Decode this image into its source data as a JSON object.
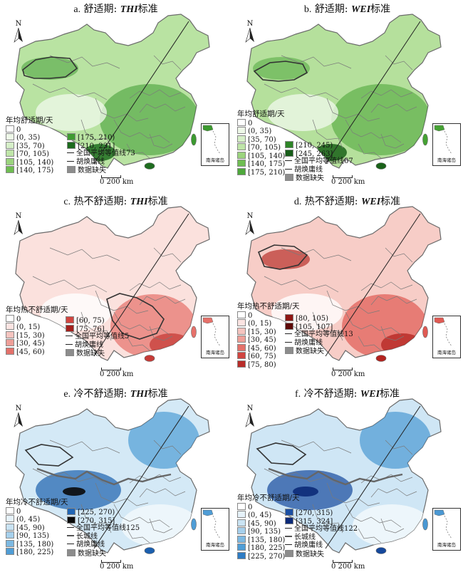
{
  "panels": [
    {
      "idx": "a.",
      "title_prefix": "舒适期:",
      "std": "THI",
      "title_suffix": "标准",
      "legend_title": "年均舒适期/天",
      "legend_col1": [
        "0",
        "(0, 35)",
        "[35, 70)",
        "[70, 105)",
        "[105, 140)",
        "[140, 175)"
      ],
      "legend_col2": [
        "[175, 210)",
        "[210, 231]",
        "全国平均等值线73",
        "胡焕庸线",
        "数据缺失"
      ],
      "colors_col1": [
        "#ffffff",
        "#eef8e8",
        "#d6efc8",
        "#bfe5a8",
        "#9bd47e",
        "#6fbd52"
      ],
      "colors_col2": [
        "#3f9a31",
        "#1d6b1e"
      ],
      "base": "#b9e3a2",
      "accent": "#3c9a2f",
      "dark": "#1f6d20"
    },
    {
      "idx": "b.",
      "title_prefix": "舒适期:",
      "std": "WEI",
      "title_suffix": "标准",
      "legend_title": "年均舒适期/天",
      "legend_col1": [
        "0",
        "(0, 35)",
        "[35, 70)",
        "[70, 105)",
        "[105, 140)",
        "[140, 175)",
        "[175, 210)"
      ],
      "legend_col2": [
        "[210, 245)",
        "[245, 263]",
        "全国平均等值线67",
        "胡焕庸线",
        "数据缺失"
      ],
      "colors_col1": [
        "#ffffff",
        "#eef8e8",
        "#d6efc8",
        "#bfe5a8",
        "#9bd47e",
        "#6fbd52",
        "#4ea83b"
      ],
      "colors_col2": [
        "#2e8528",
        "#165c18"
      ],
      "base": "#b5e09c",
      "accent": "#45a233",
      "dark": "#1a6219"
    },
    {
      "idx": "c.",
      "title_prefix": "热不舒适期:",
      "std": "THI",
      "title_suffix": "标准",
      "legend_title": "年均热不舒适期/天",
      "legend_col1": [
        "0",
        "(0, 15)",
        "[15, 30)",
        "[30, 45)",
        "[45, 60)"
      ],
      "legend_col2": [
        "[60, 75)",
        "[75, 76]",
        "全国平均等值线5",
        "胡焕庸线",
        "数据缺失"
      ],
      "colors_col1": [
        "#ffffff",
        "#fbe4e2",
        "#f5c4bf",
        "#ee9f98",
        "#e4716a"
      ],
      "colors_col2": [
        "#d14540",
        "#a3201d"
      ],
      "base": "#fbe1dd",
      "accent": "#e6716a",
      "dark": "#c63b37"
    },
    {
      "idx": "d.",
      "title_prefix": "热不舒适期:",
      "std": "WEI",
      "title_suffix": "标准",
      "legend_title": "年均热不舒适期/天",
      "legend_col1": [
        "0",
        "(0, 15)",
        "[15, 30)",
        "[30, 45)",
        "[45, 60)",
        "[60, 75)",
        "[75, 80)"
      ],
      "legend_col2": [
        "[80, 105)",
        "[105, 107]",
        "全国平均等值线13",
        "胡焕庸线",
        "数据缺失"
      ],
      "colors_col1": [
        "#ffffff",
        "#fbe4e2",
        "#f5c4bf",
        "#ee9f98",
        "#e4716a",
        "#d14540",
        "#b82c29"
      ],
      "colors_col2": [
        "#8e1613",
        "#5e0a08"
      ],
      "base": "#f7cdc7",
      "accent": "#e05a53",
      "dark": "#b3231f"
    },
    {
      "idx": "e.",
      "title_prefix": "冷不舒适期:",
      "std": "THI",
      "title_suffix": "标准",
      "legend_title": "年均冷不舒适期/天",
      "legend_col1": [
        "0",
        "(0, 45)",
        "[45, 90)",
        "[90, 135)",
        "[135, 180)",
        "[180, 225)"
      ],
      "legend_col2": [
        "[225, 270)",
        "[270, 315]",
        "全国平均等值线125",
        "长城线",
        "胡焕庸线",
        "数据缺失"
      ],
      "colors_col1": [
        "#ffffff",
        "#e6f2fa",
        "#c9e3f3",
        "#a6d0ec",
        "#7db9e2",
        "#4f9dd6"
      ],
      "colors_col2": [
        "#2166b5",
        "#0a0a0a"
      ],
      "base": "#d4e9f6",
      "accent": "#4f9dd6",
      "dark": "#1b5fae"
    },
    {
      "idx": "f.",
      "title_prefix": "冷不舒适期:",
      "std": "WEI",
      "title_suffix": "标准",
      "legend_title": "年均冷不舒适期/天",
      "legend_col1": [
        "0",
        "(0, 45)",
        "[45, 90)",
        "[90, 135)",
        "[135, 180)",
        "[180, 225)",
        "[225, 270)"
      ],
      "legend_col2": [
        "[270, 315)",
        "[315, 324]",
        "全国平均等值线122",
        "长城线",
        "胡焕庸线",
        "数据缺失"
      ],
      "colors_col1": [
        "#ffffff",
        "#e6f2fa",
        "#c9e3f3",
        "#a6d0ec",
        "#7db9e2",
        "#4f9dd6",
        "#2e7cc4"
      ],
      "colors_col2": [
        "#1b4fa3",
        "#0c2a78"
      ],
      "base": "#cfe6f5",
      "accent": "#4a98d3",
      "dark": "#15489c"
    }
  ],
  "common": {
    "north": "N",
    "scale": "0  200 km",
    "inset": "南海诸岛",
    "missing_color": "#8c8c8c"
  }
}
